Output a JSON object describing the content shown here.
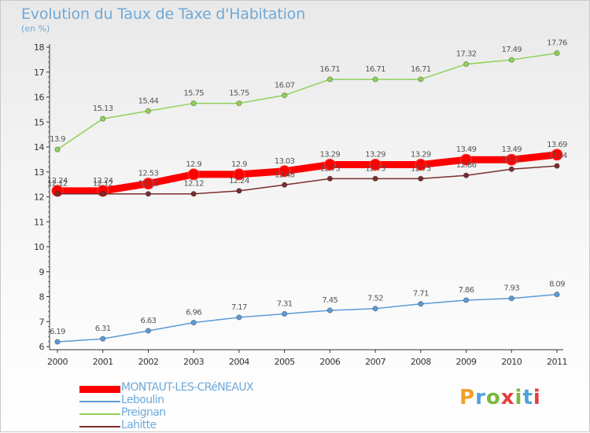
{
  "title": "Evolution du Taux de Taxe d'Habitation",
  "subtitle": "(en %)",
  "brand": {
    "letters": [
      "P",
      "r",
      "o",
      "x",
      "i",
      "t",
      "i"
    ],
    "colors": [
      "#f1a12a",
      "#4ea3d9",
      "#7ab83b",
      "#e33d3d",
      "#7ab83b",
      "#4ea3d9",
      "#e33d3d"
    ]
  },
  "chart_data": {
    "type": "line",
    "title": "Evolution du Taux de Taxe d'Habitation",
    "ylabel": "(en %)",
    "xlabel": "",
    "x": [
      "2000",
      "2001",
      "2002",
      "2003",
      "2004",
      "2005",
      "2006",
      "2007",
      "2008",
      "2009",
      "2010",
      "2011"
    ],
    "ylim": [
      6,
      18
    ],
    "yticks": [
      "6",
      "7",
      "8",
      "9",
      "10",
      "11",
      "12",
      "13",
      "14",
      "15",
      "16",
      "17",
      "18"
    ],
    "grid": false,
    "legend_position": "bottom-left",
    "series": [
      {
        "name": "MONTAUT-LES-CRéNEAUX",
        "color": "#ff0000",
        "bold": true,
        "values": [
          12.24,
          12.24,
          12.53,
          12.9,
          12.9,
          13.03,
          13.29,
          13.29,
          13.29,
          13.49,
          13.49,
          13.69
        ],
        "labels": [
          "12.24",
          "12.24",
          "12.53",
          "12.9",
          "12.9",
          "13.03",
          "13.29",
          "13.29",
          "13.29",
          "13.49",
          "13.49",
          "13.69"
        ]
      },
      {
        "name": "Leboulin",
        "color": "#5b9bd5",
        "values": [
          6.19,
          6.31,
          6.63,
          6.96,
          7.17,
          7.31,
          7.45,
          7.52,
          7.71,
          7.86,
          7.93,
          8.09
        ],
        "labels": [
          "6.19",
          "6.31",
          "6.63",
          "6.96",
          "7.17",
          "7.31",
          "7.45",
          "7.52",
          "7.71",
          "7.86",
          "7.93",
          "8.09"
        ]
      },
      {
        "name": "Preignan",
        "color": "#8fd158",
        "values": [
          13.9,
          15.13,
          15.44,
          15.75,
          15.75,
          16.07,
          16.71,
          16.71,
          16.71,
          17.32,
          17.49,
          17.76
        ],
        "labels": [
          "13.9",
          "15.13",
          "15.44",
          "15.75",
          "15.75",
          "16.07",
          "16.71",
          "16.71",
          "16.71",
          "17.32",
          "17.49",
          "17.76"
        ]
      },
      {
        "name": "Lahitte",
        "color": "#7a2e2e",
        "values": [
          12.12,
          12.12,
          12.12,
          12.12,
          12.24,
          12.48,
          12.73,
          12.73,
          12.73,
          12.86,
          13.11,
          13.24
        ],
        "labels": [
          "12.12",
          "12.12",
          "12.12",
          "12.12",
          "12.24",
          "12.48",
          "12.73",
          "12.73",
          "12.73",
          "12.86",
          "13.11",
          "13.24"
        ]
      }
    ]
  }
}
